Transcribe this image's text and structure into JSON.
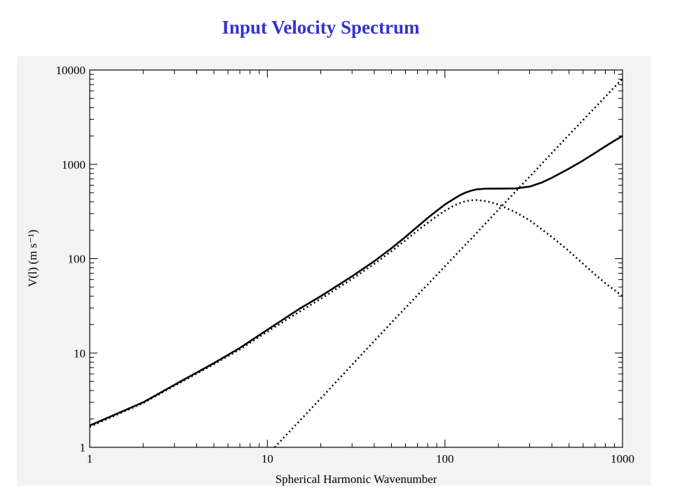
{
  "page": {
    "title": "Input Velocity Spectrum"
  },
  "chart_data": {
    "type": "line",
    "title": "Input Velocity Spectrum",
    "xlabel": "Spherical Harmonic Wavenumber",
    "ylabel": "V(l) (m s⁻¹)",
    "x_scale": "log",
    "y_scale": "log",
    "xlim": [
      1,
      1000
    ],
    "ylim": [
      1,
      10000
    ],
    "x_ticks": [
      1,
      10,
      100,
      1000
    ],
    "x_tick_labels": [
      "1",
      "10",
      "100",
      "1000"
    ],
    "y_ticks": [
      1,
      10,
      100,
      1000,
      10000
    ],
    "y_tick_labels": [
      "1",
      "10",
      "100",
      "1000",
      "10000"
    ],
    "grid": false,
    "legend": "none",
    "series": [
      {
        "style": "solid",
        "color": "#000000",
        "x": [
          1,
          2,
          3,
          5,
          7,
          10,
          15,
          20,
          30,
          40,
          50,
          60,
          70,
          80,
          90,
          100,
          110,
          120,
          130,
          140,
          150,
          170,
          200,
          250,
          300,
          350,
          400,
          500,
          600,
          700,
          800,
          900,
          1000
        ],
        "y": [
          1.7,
          3.0,
          4.6,
          7.8,
          11.3,
          17.6,
          29,
          40,
          65,
          94,
          129,
          170,
          218,
          270,
          322,
          375,
          420,
          465,
          500,
          525,
          542,
          552,
          553,
          555,
          580,
          640,
          720,
          900,
          1100,
          1320,
          1550,
          1780,
          2000
        ]
      },
      {
        "style": "dotted",
        "color": "#000000",
        "x": [
          1,
          2,
          3,
          5,
          7,
          10,
          15,
          20,
          30,
          40,
          50,
          60,
          70,
          80,
          90,
          100,
          110,
          120,
          130,
          140,
          150,
          170,
          200,
          250,
          300,
          400,
          500,
          600,
          700,
          800,
          1000
        ],
        "y": [
          1.65,
          2.95,
          4.5,
          7.6,
          10.9,
          16.8,
          27,
          37.5,
          61,
          88,
          120,
          157,
          198,
          240,
          282,
          322,
          357,
          385,
          405,
          415,
          418,
          408,
          375,
          310,
          255,
          170,
          120,
          88,
          68,
          55,
          40
        ]
      },
      {
        "style": "dotted",
        "color": "#000000",
        "x": [
          11,
          20,
          50,
          100,
          150,
          200,
          300,
          500,
          700,
          1000
        ],
        "y": [
          1.0,
          3.3,
          21,
          83,
          185,
          330,
          740,
          2060,
          4000,
          8100
        ]
      }
    ]
  }
}
